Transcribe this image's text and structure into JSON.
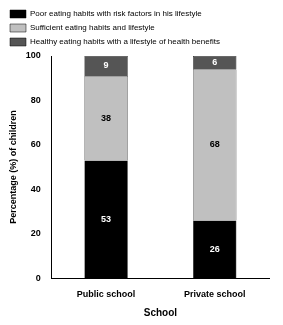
{
  "chart_data": {
    "type": "bar",
    "stacked": true,
    "data_labels": true,
    "legend": "top",
    "grid": false,
    "x_label": "School",
    "y_label": "Percentage (%) of children",
    "categories": [
      "Public school",
      "Private school"
    ],
    "series": [
      {
        "name": "Poor eating habits with risk factors in his lifestyle",
        "color": "#000000",
        "values": [
          53,
          26
        ]
      },
      {
        "name": "Sufficient eating habits and lifestyle",
        "color": "#c0c0c0",
        "values": [
          38,
          68
        ]
      },
      {
        "name": "Healthy eating habits with a lifestyle of health benefits",
        "color": "#555555",
        "values": [
          9,
          6
        ]
      }
    ],
    "ylim": [
      0,
      100
    ],
    "yticks": [
      0,
      20,
      40,
      60,
      80,
      100
    ]
  }
}
